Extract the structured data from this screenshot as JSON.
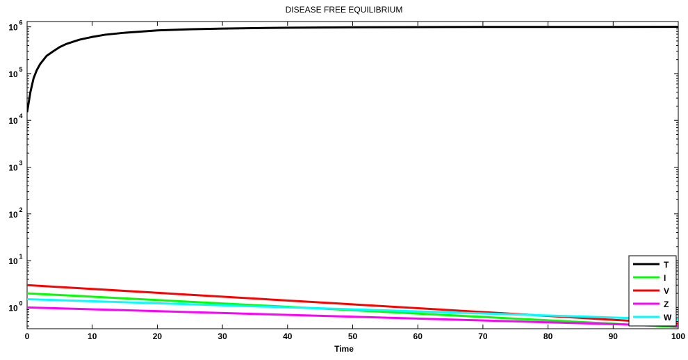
{
  "chart_data": {
    "type": "line",
    "title": "DISEASE FREE EQUILIBRIUM",
    "xlabel": "Time",
    "ylabel": "",
    "xlim": [
      0,
      100
    ],
    "ylim": [
      0.35,
      1300000
    ],
    "yscale": "log",
    "grid": false,
    "legend_position": "bottom-right",
    "x_ticks": [
      0,
      10,
      20,
      30,
      40,
      50,
      60,
      70,
      80,
      90,
      100
    ],
    "y_ticks": [
      {
        "value": 1,
        "base": "10",
        "exp": "0"
      },
      {
        "value": 10,
        "base": "10",
        "exp": "1"
      },
      {
        "value": 100,
        "base": "10",
        "exp": "2"
      },
      {
        "value": 1000,
        "base": "10",
        "exp": "3"
      },
      {
        "value": 10000,
        "base": "10",
        "exp": "4"
      },
      {
        "value": 100000,
        "base": "10",
        "exp": "5"
      },
      {
        "value": 1000000,
        "base": "10",
        "exp": "6"
      }
    ],
    "series": [
      {
        "name": "T",
        "color": "#000000",
        "x": [
          0,
          0.2,
          0.5,
          1,
          1.5,
          2,
          3,
          4,
          5,
          6,
          8,
          10,
          12,
          15,
          20,
          25,
          30,
          40,
          50,
          60,
          70,
          80,
          90,
          100
        ],
        "y": [
          15000,
          22000,
          40000,
          80000,
          120000,
          160000,
          240000,
          300000,
          370000,
          430000,
          530000,
          610000,
          680000,
          750000,
          840000,
          890000,
          920000,
          960000,
          980000,
          990000,
          995000,
          998000,
          999000,
          1000000
        ]
      },
      {
        "name": "I",
        "color": "#00ff00",
        "x": [
          0,
          100
        ],
        "y": [
          2.0,
          0.38
        ]
      },
      {
        "name": "V",
        "color": "#ff0000",
        "x": [
          0,
          100
        ],
        "y": [
          3.0,
          0.45
        ]
      },
      {
        "name": "Z",
        "color": "#ff00ff",
        "x": [
          0,
          100
        ],
        "y": [
          1.0,
          0.4
        ]
      },
      {
        "name": "W",
        "color": "#00ffff",
        "x": [
          0,
          100
        ],
        "y": [
          1.5,
          0.55
        ]
      }
    ]
  }
}
